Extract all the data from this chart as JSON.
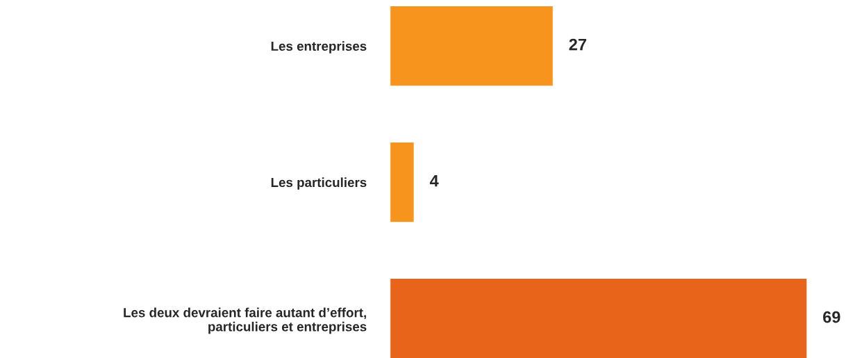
{
  "chart_data": {
    "type": "bar",
    "orientation": "horizontal",
    "categories": [
      "Les entreprises",
      "Les particuliers",
      "Les deux devraient faire autant d’effort,\nparticuliers et entreprises"
    ],
    "values": [
      27,
      4,
      69
    ],
    "colors": [
      "#f7941d",
      "#f7941d",
      "#e8641b"
    ],
    "data_labels": true,
    "grid": false,
    "legend": false
  }
}
